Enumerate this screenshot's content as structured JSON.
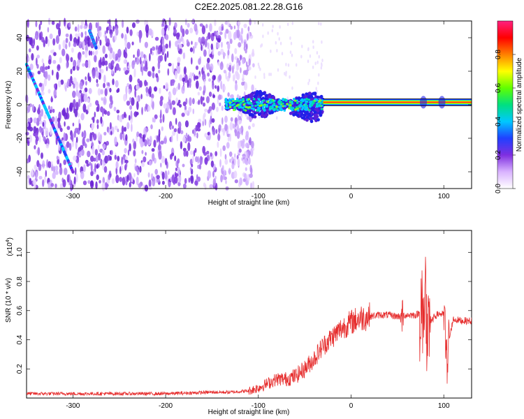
{
  "title": "C2E2.2025.081.22.28.G16",
  "chart_data": [
    {
      "type": "heatmap",
      "xlabel": "Height of straight line (km)",
      "ylabel": "Frequency (Hz)",
      "xlim": [
        -350,
        130
      ],
      "ylim": [
        -50,
        50
      ],
      "xticks": [
        -300,
        -200,
        -100,
        0,
        100
      ],
      "yticks": [
        -40,
        -20,
        0,
        20,
        40
      ],
      "colorbar": {
        "label": "Normalized spectral amplitude",
        "range": [
          0,
          1
        ],
        "ticks": [
          0.0,
          0.2,
          0.4,
          0.6,
          0.8
        ],
        "colors": [
          "#ffffff",
          "#d9b3ff",
          "#7f2fe0",
          "#2040ff",
          "#00c8ff",
          "#00e080",
          "#60ff00",
          "#ffff00",
          "#ff8000",
          "#ff0000",
          "#ff2080"
        ]
      },
      "features": {
        "noise_region_x": [
          -350,
          -105
        ],
        "diagonal_track": {
          "x": [
            -350,
            -300
          ],
          "y": [
            24,
            -40
          ]
        },
        "diagonal_track_2": {
          "x": [
            -282,
            -275
          ],
          "y": [
            44,
            34
          ]
        },
        "broadband_band": {
          "x": [
            -135,
            -30
          ],
          "y": [
            -8,
            8
          ]
        },
        "carrier_line": {
          "x": [
            -30,
            130
          ],
          "y": 1.5
        }
      }
    },
    {
      "type": "line",
      "xlabel": "Height of straight line (km)",
      "ylabel": "SNR (10 * v/v)",
      "yscale_label": "(x10",
      "yscale_exp": "4",
      "scale_factor": 10000,
      "xlim": [
        -350,
        130
      ],
      "ylim": [
        0,
        1.15
      ],
      "xticks": [
        -300,
        -200,
        -100,
        0,
        100
      ],
      "yticks": [
        0.2,
        0.4,
        0.6,
        0.8,
        1.0
      ],
      "series": [
        {
          "color": "#e62e2e",
          "x": [
            -350,
            -300,
            -250,
            -200,
            -150,
            -130,
            -110,
            -100,
            -90,
            -80,
            -70,
            -60,
            -50,
            -40,
            -30,
            -20,
            -10,
            0,
            10,
            20,
            30,
            40,
            50,
            60,
            70,
            78,
            80,
            82,
            85,
            90,
            95,
            100,
            103,
            110,
            120,
            130
          ],
          "y": [
            0.03,
            0.03,
            0.03,
            0.03,
            0.04,
            0.04,
            0.05,
            0.07,
            0.1,
            0.13,
            0.13,
            0.15,
            0.2,
            0.27,
            0.36,
            0.42,
            0.48,
            0.52,
            0.55,
            0.56,
            0.57,
            0.57,
            0.56,
            0.57,
            0.57,
            0.6,
            0.85,
            0.3,
            0.5,
            0.56,
            0.58,
            0.57,
            0.3,
            0.54,
            0.53,
            0.53
          ]
        }
      ]
    }
  ]
}
